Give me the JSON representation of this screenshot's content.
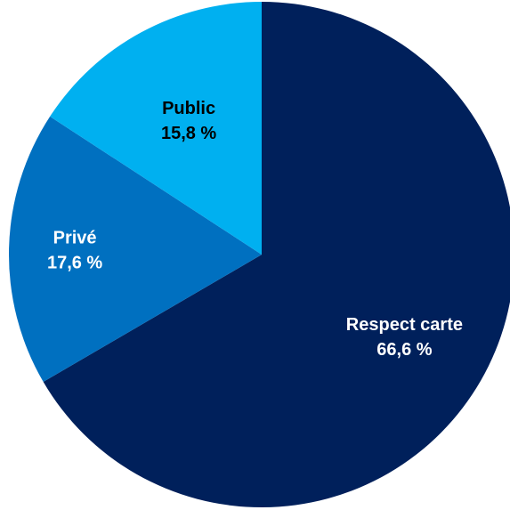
{
  "chart_data": {
    "type": "pie",
    "start_angle_deg": 0,
    "direction": "clockwise",
    "slices": [
      {
        "label": "Respect carte",
        "value": 66.6,
        "value_text": "66,6 %",
        "color": "#00205b",
        "text_color": "#ffffff"
      },
      {
        "label": "Privé",
        "value": 17.6,
        "value_text": "17,6 %",
        "color": "#0070c0",
        "text_color": "#ffffff"
      },
      {
        "label": "Public",
        "value": 15.8,
        "value_text": "15,8 %",
        "color": "#00b0f0",
        "text_color": "#000000"
      }
    ]
  }
}
